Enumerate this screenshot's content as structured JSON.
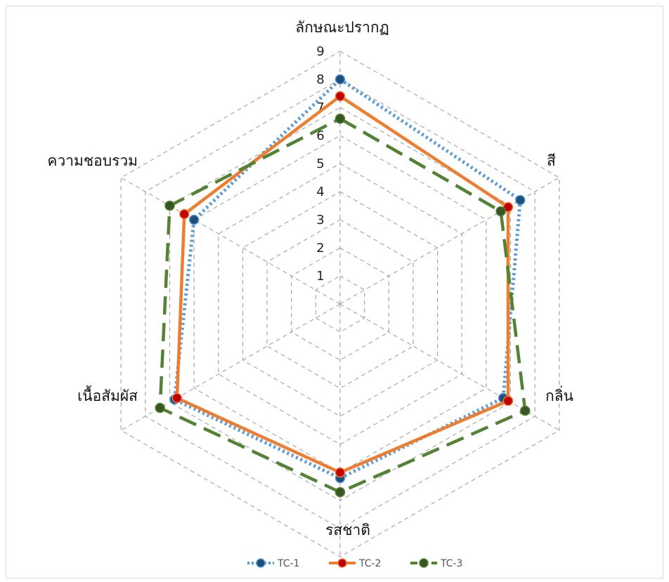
{
  "chart_data": {
    "type": "radar",
    "axes": [
      "ลักษณะปรากฏ",
      "สี",
      "กลิ่น",
      "รสชาติ",
      "เนื้อสัมผัส",
      "ความชอบรวม"
    ],
    "r_ticks": [
      "1",
      "2",
      "3",
      "4",
      "5",
      "6",
      "7",
      "8",
      "9"
    ],
    "rlim": [
      0,
      9
    ],
    "grid": true,
    "legend_position": "bottom",
    "series": [
      {
        "name": "TC-1",
        "values": [
          8.0,
          7.4,
          6.7,
          6.2,
          6.8,
          6.0
        ],
        "color": "#5b9bd5",
        "marker_color": "#1f4e79",
        "dash": "dotted"
      },
      {
        "name": "TC-2",
        "values": [
          7.4,
          6.9,
          6.9,
          6.0,
          6.7,
          6.4
        ],
        "color": "#ed7d31",
        "marker_color": "#c00000",
        "dash": "solid"
      },
      {
        "name": "TC-3",
        "values": [
          6.6,
          6.6,
          7.6,
          6.7,
          7.4,
          7.0
        ],
        "color": "#548235",
        "marker_color": "#375623",
        "dash": "dashed"
      }
    ]
  }
}
